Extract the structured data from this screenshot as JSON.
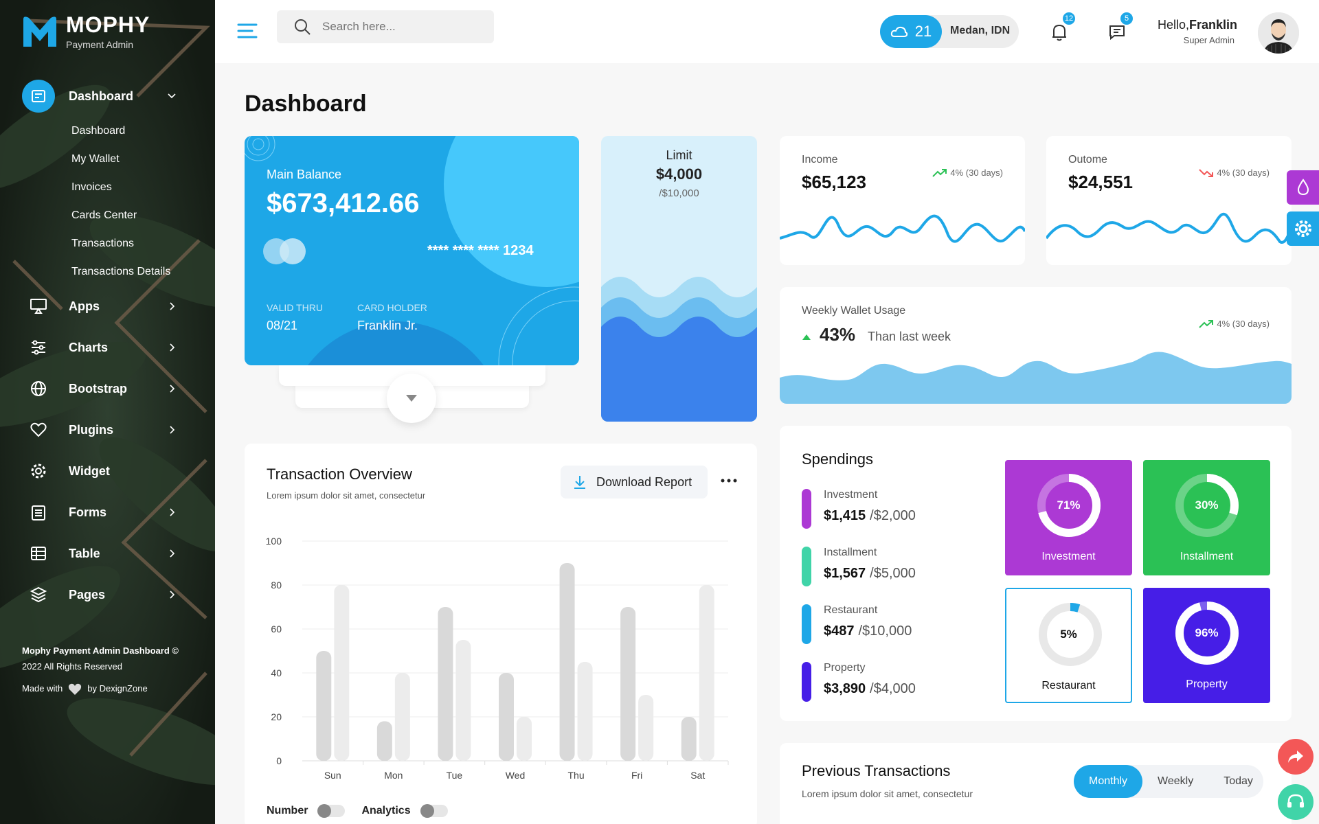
{
  "brand": {
    "name": "MOPHY",
    "tagline": "Payment Admin"
  },
  "sidebar": {
    "dashboard": {
      "label": "Dashboard",
      "icon": "dashboard-icon"
    },
    "submenu": [
      "Dashboard",
      "My Wallet",
      "Invoices",
      "Cards Center",
      "Transactions",
      "Transactions Details"
    ],
    "items": [
      {
        "label": "Apps",
        "icon": "monitor-icon"
      },
      {
        "label": "Charts",
        "icon": "sliders-icon"
      },
      {
        "label": "Bootstrap",
        "icon": "globe-icon"
      },
      {
        "label": "Plugins",
        "icon": "heart-icon"
      },
      {
        "label": "Widget",
        "icon": "gear-icon"
      },
      {
        "label": "Forms",
        "icon": "clipboard-icon"
      },
      {
        "label": "Table",
        "icon": "table-icon"
      },
      {
        "label": "Pages",
        "icon": "layers-icon"
      }
    ],
    "footer": {
      "line1": "Mophy Payment Admin Dashboard ©",
      "line2": "2022 All Rights Reserved",
      "made_prefix": "Made with",
      "made_suffix": "by DexignZone"
    }
  },
  "header": {
    "search_placeholder": "Search here...",
    "weather": {
      "temp": "21",
      "city": "Medan, IDN"
    },
    "notifications": "12",
    "messages": "5",
    "greeting": "Hello,",
    "user": "Franklin",
    "role": "Super Admin"
  },
  "page_title": "Dashboard",
  "balance_card": {
    "label": "Main Balance",
    "amount": "$673,412.66",
    "card_number": "**** **** **** 1234",
    "valid_label": "VALID THRU",
    "valid_value": "08/21",
    "holder_label": "CARD HOLDER",
    "holder_value": "Franklin Jr."
  },
  "limit": {
    "title": "Limit",
    "value": "$4,000",
    "max": "/$10,000"
  },
  "income": {
    "title": "Income",
    "value": "$65,123",
    "trend": "4% (30 days)",
    "trend_color": "#2bc155"
  },
  "outcome": {
    "title": "Outome",
    "value": "$24,551",
    "trend": "4% (30 days)",
    "trend_color": "#f35757"
  },
  "weekly": {
    "title": "Weekly Wallet Usage",
    "percent": "43%",
    "compare": "Than last week",
    "trend": "4% (30 days)"
  },
  "transaction_overview": {
    "title": "Transaction Overview",
    "subtitle": "Lorem ipsum dolor sit amet, consectetur",
    "download_label": "Download Report",
    "toggle_number": "Number",
    "toggle_analytics": "Analytics"
  },
  "chart_data": {
    "type": "bar",
    "categories": [
      "Sun",
      "Mon",
      "Tue",
      "Wed",
      "Thu",
      "Fri",
      "Sat"
    ],
    "series": [
      {
        "values": [
          50,
          18,
          70,
          40,
          90,
          70,
          20
        ]
      },
      {
        "values": [
          80,
          40,
          55,
          20,
          45,
          30,
          80
        ]
      }
    ],
    "yticks": [
      0,
      20,
      40,
      60,
      80,
      100
    ],
    "ylim": [
      0,
      100
    ],
    "colors": [
      "#d9d9d9",
      "#ececec"
    ],
    "grid": true
  },
  "spendings": {
    "title": "Spendings",
    "items": [
      {
        "name": "Investment",
        "amount": "$1,415",
        "limit": "/$2,000",
        "color": "#ac39d4"
      },
      {
        "name": "Installment",
        "amount": "$1,567",
        "limit": "/$5,000",
        "color": "#40d4a8"
      },
      {
        "name": "Restaurant",
        "amount": "$487",
        "limit": "/$10,000",
        "color": "#1ea7e7"
      },
      {
        "name": "Property",
        "amount": "$3,890",
        "limit": "/$4,000",
        "color": "#461ee7"
      }
    ],
    "tiles": [
      {
        "label": "Investment",
        "percent": "71%",
        "value": 0.71,
        "bg": "#ac39d4"
      },
      {
        "label": "Installment",
        "percent": "30%",
        "value": 0.3,
        "bg": "#2bc155"
      },
      {
        "label": "Restaurant",
        "percent": "5%",
        "value": 0.05,
        "bg": "#ffffff"
      },
      {
        "label": "Property",
        "percent": "96%",
        "value": 0.96,
        "bg": "#461ee7"
      }
    ]
  },
  "previous_transactions": {
    "title": "Previous Transactions",
    "subtitle": "Lorem ipsum dolor sit amet, consectetur",
    "tabs": [
      "Monthly",
      "Weekly",
      "Today"
    ],
    "active_tab": "Monthly"
  },
  "colors": {
    "primary": "#1ea7e7",
    "purple": "#ac39d4",
    "accent_fab": "#f35757",
    "support_fab": "#40d4a8"
  }
}
